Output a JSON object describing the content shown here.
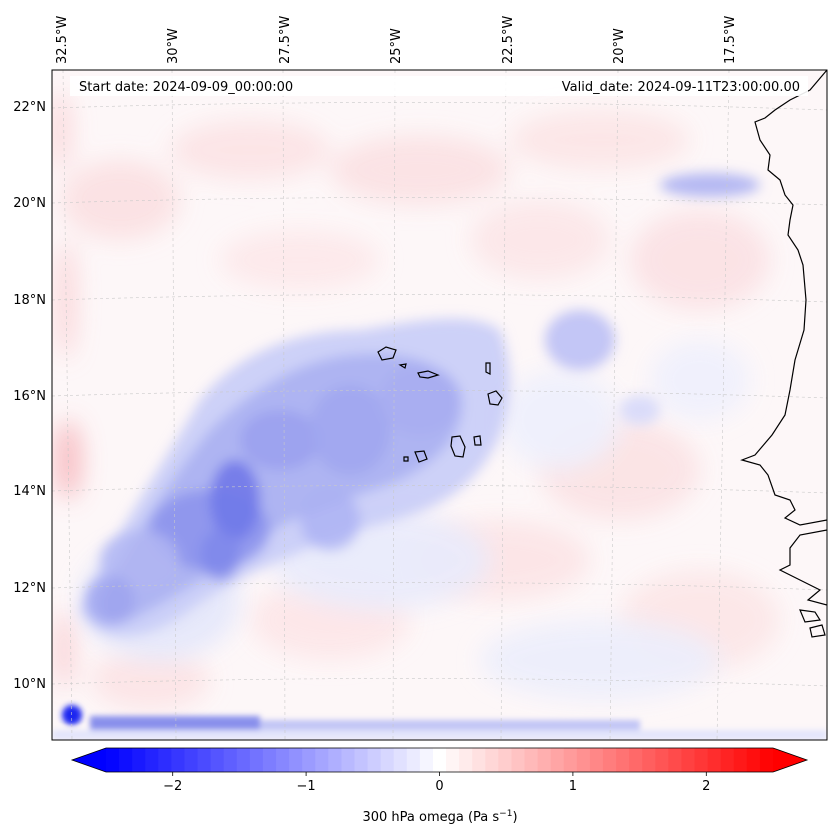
{
  "map": {
    "start_date_label": "Start date: 2024-09-09_00:00:00",
    "valid_date_label": "Valid_date: 2024-09-11T23:00:00.00",
    "lon_ticks": [
      "32.5°W",
      "30°W",
      "27.5°W",
      "25°W",
      "22.5°W",
      "20°W",
      "17.5°W"
    ],
    "lat_ticks": [
      "22°N",
      "20°N",
      "18°N",
      "16°N",
      "14°N",
      "12°N",
      "10°N"
    ],
    "colorbar": {
      "ticks": [
        "−2",
        "−1",
        "0",
        "1",
        "2"
      ],
      "tick_values": [
        -2,
        -1,
        0,
        1,
        2
      ],
      "min": -2.5,
      "max": 2.5,
      "levels": 51,
      "label_main": "300 hPa omega (Pa s",
      "label_exp": "−1",
      "label_end": ")",
      "color_min": "#0000ff",
      "color_mid": "#ffffff",
      "color_max": "#ff0000"
    }
  }
}
